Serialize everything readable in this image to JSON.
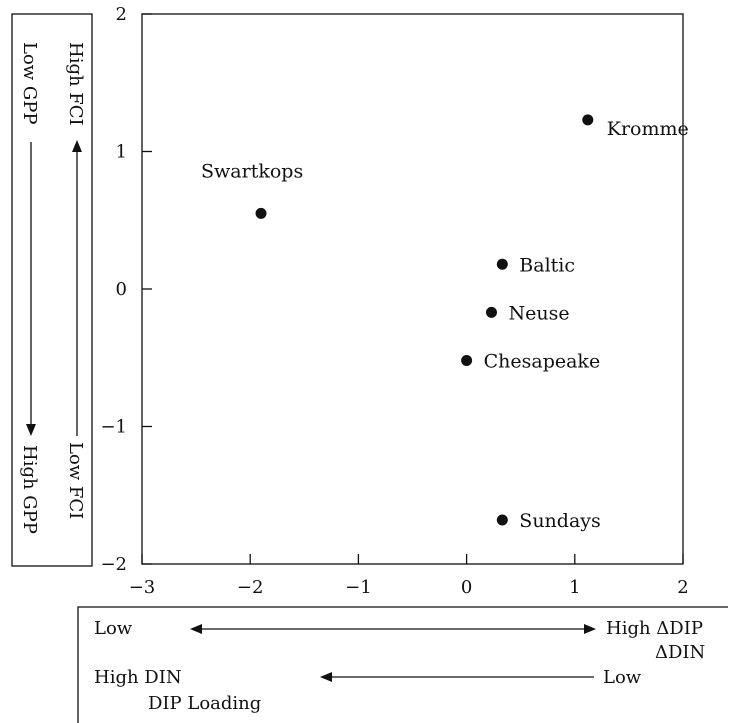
{
  "chart_data": {
    "type": "scatter",
    "title": "",
    "xlabel": "",
    "ylabel": "",
    "xlim": [
      -3,
      2
    ],
    "ylim": [
      -2,
      2
    ],
    "xticks": [
      -3,
      -2,
      -1,
      0,
      1,
      2
    ],
    "xtick_labels": [
      "−3",
      "−2",
      "−1",
      "0",
      "1",
      "2"
    ],
    "yticks": [
      -2,
      -1,
      0,
      1,
      2
    ],
    "ytick_labels": [
      "−2",
      "−1",
      "0",
      "1",
      "2"
    ],
    "grid": false,
    "points": [
      {
        "label": "Kromme",
        "x": 1.12,
        "y": 1.23
      },
      {
        "label": "Swartkops",
        "x": -1.9,
        "y": 0.55
      },
      {
        "label": "Baltic",
        "x": 0.33,
        "y": 0.18
      },
      {
        "label": "Neuse",
        "x": 0.23,
        "y": -0.17
      },
      {
        "label": "Chesapeake",
        "x": 0.0,
        "y": -0.52
      },
      {
        "label": "Sundays",
        "x": 0.33,
        "y": -1.68
      }
    ]
  },
  "left_annotation": {
    "top_left": "Low GPP",
    "bottom_left": "High GPP",
    "top_right": "High FCI",
    "bottom_right": "Low FCI"
  },
  "bottom_annotation": {
    "row1_left": "Low",
    "row1_right_line1": "High ΔDIP",
    "row1_right_line2": "ΔDIN",
    "row2_left_line1": "High DIN",
    "row2_left_line2": "DIP Loading",
    "row2_right": "Low"
  }
}
